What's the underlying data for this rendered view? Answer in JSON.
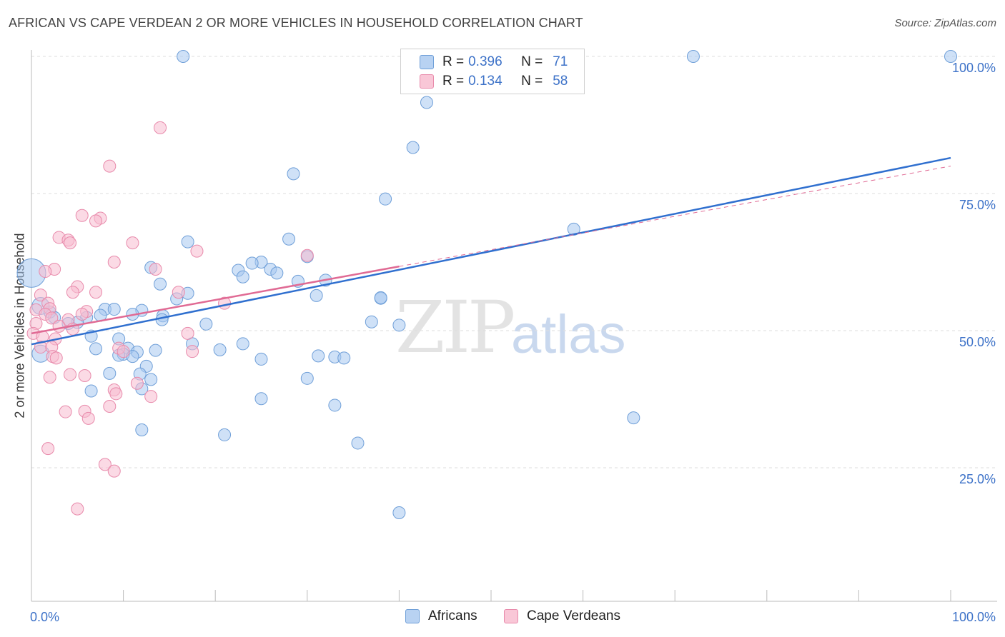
{
  "chart_data": {
    "type": "scatter",
    "title": "AFRICAN VS CAPE VERDEAN 2 OR MORE VEHICLES IN HOUSEHOLD CORRELATION CHART",
    "source": "Source: ZipAtlas.com",
    "xlabel": "",
    "ylabel": "2 or more Vehicles in Household",
    "xlim": [
      0,
      100
    ],
    "ylim": [
      0,
      104
    ],
    "y_ticks": [
      {
        "v": 25,
        "label": "25.0%"
      },
      {
        "v": 50,
        "label": "50.0%"
      },
      {
        "v": 75,
        "label": "75.0%"
      },
      {
        "v": 100,
        "label": "100.0%"
      }
    ],
    "x_ticks": [
      {
        "v": 0,
        "label": "0.0%"
      },
      {
        "v": 100,
        "label": "100.0%"
      }
    ],
    "watermark": {
      "zip": "ZIP",
      "atlas": "atlas"
    },
    "series": [
      {
        "name": "Africans",
        "fill": "#a8c8f0",
        "stroke": "#6f9fd8",
        "line": "#2f6fcf",
        "R": "0.396",
        "N": "71",
        "trend": {
          "x0": 0,
          "y0": 47.5,
          "x1": 100,
          "y1": 81.5,
          "dash_from": 40
        },
        "points": [
          [
            16.5,
            100
          ],
          [
            72,
            100
          ],
          [
            100,
            100
          ],
          [
            43,
            91.6
          ],
          [
            41.5,
            83.4
          ],
          [
            28.5,
            78.6
          ],
          [
            38.5,
            74
          ],
          [
            59,
            68.5
          ],
          [
            28,
            66.7
          ],
          [
            17,
            66.2
          ],
          [
            25,
            62.5
          ],
          [
            24,
            62.3
          ],
          [
            22.5,
            61
          ],
          [
            26,
            61.2
          ],
          [
            13,
            61.5
          ],
          [
            30,
            63.5
          ],
          [
            26.7,
            60.5
          ],
          [
            23,
            59.8
          ],
          [
            29,
            59
          ],
          [
            14,
            58.5
          ],
          [
            32,
            59.2
          ],
          [
            38,
            55.9
          ],
          [
            31,
            56.4
          ],
          [
            17,
            56.8
          ],
          [
            15.8,
            55.8
          ],
          [
            8,
            53.9
          ],
          [
            9,
            53.9
          ],
          [
            12,
            53.7
          ],
          [
            11,
            53
          ],
          [
            7.5,
            52.8
          ],
          [
            6,
            52.4
          ],
          [
            14.3,
            52.7
          ],
          [
            14.2,
            52
          ],
          [
            37,
            51.6
          ],
          [
            19,
            51.2
          ],
          [
            40,
            51
          ],
          [
            38,
            56
          ],
          [
            5,
            51.5
          ],
          [
            4,
            51.3
          ],
          [
            2,
            53.4
          ],
          [
            2.5,
            52.4
          ],
          [
            6.5,
            49
          ],
          [
            9.5,
            48.5
          ],
          [
            17.5,
            47.6
          ],
          [
            7,
            46.7
          ],
          [
            10.5,
            46.8
          ],
          [
            13.5,
            46.4
          ],
          [
            11.5,
            46.1
          ],
          [
            20.5,
            46.5
          ],
          [
            23,
            47.6
          ],
          [
            10,
            45.7
          ],
          [
            33,
            45.2
          ],
          [
            34,
            45
          ],
          [
            11,
            45.3
          ],
          [
            9.5,
            45.5
          ],
          [
            25,
            44.8
          ],
          [
            31.2,
            45.4
          ],
          [
            12.5,
            43.5
          ],
          [
            8.5,
            42.2
          ],
          [
            11.8,
            42.1
          ],
          [
            30,
            41.3
          ],
          [
            13,
            41.1
          ],
          [
            6.5,
            39
          ],
          [
            12,
            39.4
          ],
          [
            25,
            37.6
          ],
          [
            33,
            36.4
          ],
          [
            12,
            31.9
          ],
          [
            21,
            31
          ],
          [
            35.5,
            29.5
          ],
          [
            65.5,
            34.1
          ],
          [
            40,
            16.8
          ]
        ],
        "big": [
          [
            0,
            60.5
          ],
          [
            1,
            54.5
          ],
          [
            1,
            45.8
          ]
        ]
      },
      {
        "name": "Cape Verdeans",
        "fill": "#f8bcd0",
        "stroke": "#e88aab",
        "line": "#e06a94",
        "R": "0.134",
        "N": "58",
        "trend": {
          "x0": 0,
          "y0": 49.5,
          "x1": 100,
          "y1": 80,
          "dash_from": 40
        },
        "points": [
          [
            14,
            87
          ],
          [
            8.5,
            80
          ],
          [
            5.5,
            71
          ],
          [
            7.5,
            70.5
          ],
          [
            7,
            70
          ],
          [
            3,
            67
          ],
          [
            4,
            66.5
          ],
          [
            4.2,
            66
          ],
          [
            11,
            66
          ],
          [
            18,
            64.5
          ],
          [
            9,
            62.5
          ],
          [
            2.5,
            61.2
          ],
          [
            1.5,
            60.8
          ],
          [
            13.5,
            61.2
          ],
          [
            5,
            58
          ],
          [
            4.5,
            57
          ],
          [
            7,
            57
          ],
          [
            16,
            57
          ],
          [
            1,
            56.5
          ],
          [
            1.8,
            55
          ],
          [
            2,
            54
          ],
          [
            0.5,
            53.8
          ],
          [
            1.5,
            53
          ],
          [
            6,
            53.5
          ],
          [
            5.5,
            53
          ],
          [
            2.2,
            52.3
          ],
          [
            4,
            52
          ],
          [
            0.5,
            51.3
          ],
          [
            3,
            50.8
          ],
          [
            4.5,
            50.3
          ],
          [
            0.2,
            49.5
          ],
          [
            1.2,
            48.9
          ],
          [
            2.6,
            48.5
          ],
          [
            1,
            47
          ],
          [
            2.2,
            47
          ],
          [
            9.5,
            46.8
          ],
          [
            10,
            46.2
          ],
          [
            17,
            49.5
          ],
          [
            17.5,
            46.2
          ],
          [
            2.3,
            45.3
          ],
          [
            2.7,
            45
          ],
          [
            2,
            41.5
          ],
          [
            4.2,
            42
          ],
          [
            5.8,
            41.8
          ],
          [
            9,
            39.2
          ],
          [
            13,
            38
          ],
          [
            9.2,
            38.5
          ],
          [
            11.5,
            40.4
          ],
          [
            8.5,
            36.2
          ],
          [
            3.7,
            35.2
          ],
          [
            5.8,
            35.3
          ],
          [
            6.2,
            34
          ],
          [
            1.8,
            28.5
          ],
          [
            8,
            25.6
          ],
          [
            9,
            24.4
          ],
          [
            5,
            17.5
          ],
          [
            21,
            55
          ],
          [
            30,
            63.7
          ]
        ]
      }
    ]
  },
  "legend": {
    "r_label": "R =",
    "n_label": "N ="
  }
}
